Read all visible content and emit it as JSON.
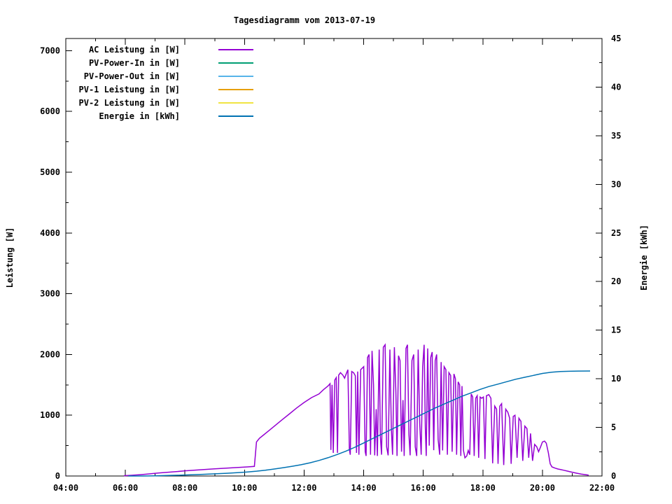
{
  "chart_data": {
    "type": "line",
    "title": "Tagesdiagramm vom 2013-07-19",
    "background": "#ffffff",
    "grid": false,
    "legend_position": "top-left-inside",
    "x_axis": {
      "min": 4,
      "max": 22,
      "major_ticks": [
        {
          "hour": 4,
          "label": "04:00"
        },
        {
          "hour": 6,
          "label": "06:00"
        },
        {
          "hour": 8,
          "label": "08:00"
        },
        {
          "hour": 10,
          "label": "10:00"
        },
        {
          "hour": 12,
          "label": "12:00"
        },
        {
          "hour": 14,
          "label": "14:00"
        },
        {
          "hour": 16,
          "label": "16:00"
        },
        {
          "hour": 18,
          "label": "18:00"
        },
        {
          "hour": 20,
          "label": "20:00"
        },
        {
          "hour": 22,
          "label": "22:00"
        }
      ],
      "minor_hours": [
        5,
        7,
        9,
        11,
        13,
        15,
        17,
        19,
        21
      ]
    },
    "y_left": {
      "label": "Leistung [W]",
      "min": 0,
      "max": 7200,
      "major_ticks": [
        {
          "value": 0,
          "label": "0"
        },
        {
          "value": 1000,
          "label": "1000"
        },
        {
          "value": 2000,
          "label": "2000"
        },
        {
          "value": 3000,
          "label": "3000"
        },
        {
          "value": 4000,
          "label": "4000"
        },
        {
          "value": 5000,
          "label": "5000"
        },
        {
          "value": 6000,
          "label": "6000"
        },
        {
          "value": 7000,
          "label": "7000"
        }
      ],
      "minor_values": [
        500,
        1500,
        2500,
        3500,
        4500,
        5500,
        6500
      ]
    },
    "y_right": {
      "label": "Energie [kWh]",
      "min": 0,
      "max": 45,
      "major_ticks": [
        {
          "value": 0,
          "label": "0"
        },
        {
          "value": 5,
          "label": "5"
        },
        {
          "value": 10,
          "label": "10"
        },
        {
          "value": 15,
          "label": "15"
        },
        {
          "value": 20,
          "label": "20"
        },
        {
          "value": 25,
          "label": "25"
        },
        {
          "value": 30,
          "label": "30"
        },
        {
          "value": 35,
          "label": "35"
        },
        {
          "value": 40,
          "label": "40"
        },
        {
          "value": 45,
          "label": "45"
        }
      ],
      "minor_values": [
        2.5,
        7.5,
        12.5,
        17.5,
        22.5,
        27.5,
        32.5,
        37.5,
        42.5
      ]
    },
    "legend": {
      "entries": [
        {
          "label": "AC Leistung in [W]",
          "color": "#9400d3"
        },
        {
          "label": "PV-Power-In in [W]",
          "color": "#009e73"
        },
        {
          "label": "PV-Power-Out in [W]",
          "color": "#56b4e9"
        },
        {
          "label": "PV-1 Leistung in [W]",
          "color": "#e69f00"
        },
        {
          "label": "PV-2 Leistung in [W]",
          "color": "#f0e442"
        },
        {
          "label": "Energie in [kWh]",
          "color": "#0072b2"
        }
      ]
    },
    "series": [
      {
        "name": "AC Leistung in [W]",
        "color": "#9400d3",
        "yaxis": "left",
        "points": [
          [
            5.95,
            5
          ],
          [
            6.2,
            12
          ],
          [
            6.5,
            22
          ],
          [
            6.8,
            35
          ],
          [
            7.1,
            48
          ],
          [
            7.4,
            60
          ],
          [
            7.7,
            72
          ],
          [
            8.0,
            85
          ],
          [
            8.3,
            95
          ],
          [
            8.6,
            105
          ],
          [
            9.0,
            118
          ],
          [
            9.4,
            130
          ],
          [
            9.8,
            142
          ],
          [
            10.1,
            150
          ],
          [
            10.33,
            158
          ],
          [
            10.4,
            560
          ],
          [
            10.5,
            620
          ],
          [
            10.65,
            680
          ],
          [
            10.8,
            740
          ],
          [
            11.0,
            820
          ],
          [
            11.25,
            920
          ],
          [
            11.5,
            1020
          ],
          [
            11.75,
            1120
          ],
          [
            12.0,
            1210
          ],
          [
            12.25,
            1290
          ],
          [
            12.5,
            1350
          ],
          [
            12.65,
            1420
          ],
          [
            12.8,
            1480
          ],
          [
            12.87,
            1520
          ],
          [
            12.9,
            430
          ],
          [
            12.94,
            1500
          ],
          [
            12.98,
            380
          ],
          [
            13.03,
            1580
          ],
          [
            13.08,
            1620
          ],
          [
            13.12,
            380
          ],
          [
            13.16,
            1660
          ],
          [
            13.22,
            1700
          ],
          [
            13.3,
            1660
          ],
          [
            13.36,
            1610
          ],
          [
            13.42,
            1690
          ],
          [
            13.47,
            1750
          ],
          [
            13.52,
            440
          ],
          [
            13.55,
            350
          ],
          [
            13.6,
            1720
          ],
          [
            13.66,
            1700
          ],
          [
            13.72,
            1650
          ],
          [
            13.76,
            380
          ],
          [
            13.8,
            1720
          ],
          [
            13.84,
            350
          ],
          [
            13.9,
            1750
          ],
          [
            13.96,
            1780
          ],
          [
            14.0,
            1800
          ],
          [
            14.05,
            400
          ],
          [
            14.08,
            330
          ],
          [
            14.13,
            1950
          ],
          [
            14.18,
            2000
          ],
          [
            14.23,
            350
          ],
          [
            14.28,
            2060
          ],
          [
            14.33,
            1500
          ],
          [
            14.37,
            340
          ],
          [
            14.42,
            1100
          ],
          [
            14.46,
            330
          ],
          [
            14.52,
            2080
          ],
          [
            14.56,
            640
          ],
          [
            14.6,
            350
          ],
          [
            14.66,
            2120
          ],
          [
            14.72,
            2160
          ],
          [
            14.77,
            480
          ],
          [
            14.82,
            340
          ],
          [
            14.88,
            2080
          ],
          [
            14.93,
            760
          ],
          [
            14.97,
            350
          ],
          [
            15.03,
            2120
          ],
          [
            15.08,
            1400
          ],
          [
            15.12,
            330
          ],
          [
            15.17,
            1980
          ],
          [
            15.22,
            1900
          ],
          [
            15.27,
            400
          ],
          [
            15.32,
            1250
          ],
          [
            15.36,
            330
          ],
          [
            15.42,
            2100
          ],
          [
            15.47,
            2160
          ],
          [
            15.52,
            680
          ],
          [
            15.56,
            340
          ],
          [
            15.62,
            1900
          ],
          [
            15.68,
            2000
          ],
          [
            15.73,
            480
          ],
          [
            15.78,
            330
          ],
          [
            15.83,
            2080
          ],
          [
            15.88,
            860
          ],
          [
            15.93,
            350
          ],
          [
            15.98,
            1800
          ],
          [
            16.03,
            2160
          ],
          [
            16.07,
            800
          ],
          [
            16.1,
            330
          ],
          [
            16.15,
            2100
          ],
          [
            16.2,
            500
          ],
          [
            16.25,
            1950
          ],
          [
            16.3,
            2040
          ],
          [
            16.35,
            425
          ],
          [
            16.4,
            1900
          ],
          [
            16.45,
            2000
          ],
          [
            16.5,
            600
          ],
          [
            16.55,
            350
          ],
          [
            16.6,
            1875
          ],
          [
            16.65,
            420
          ],
          [
            16.7,
            1800
          ],
          [
            16.76,
            1750
          ],
          [
            16.81,
            350
          ],
          [
            16.86,
            1700
          ],
          [
            16.92,
            1655
          ],
          [
            16.97,
            400
          ],
          [
            17.03,
            1680
          ],
          [
            17.08,
            1600
          ],
          [
            17.12,
            350
          ],
          [
            17.17,
            1550
          ],
          [
            17.22,
            1500
          ],
          [
            17.26,
            330
          ],
          [
            17.3,
            1480
          ],
          [
            17.35,
            420
          ],
          [
            17.4,
            300
          ],
          [
            17.46,
            330
          ],
          [
            17.51,
            420
          ],
          [
            17.56,
            350
          ],
          [
            17.61,
            1350
          ],
          [
            17.66,
            1300
          ],
          [
            17.71,
            330
          ],
          [
            17.76,
            1280
          ],
          [
            17.81,
            1320
          ],
          [
            17.86,
            300
          ],
          [
            17.91,
            1300
          ],
          [
            17.96,
            1280
          ],
          [
            18.02,
            1300
          ],
          [
            18.07,
            280
          ],
          [
            18.12,
            1320
          ],
          [
            18.2,
            1340
          ],
          [
            18.27,
            1280
          ],
          [
            18.33,
            210
          ],
          [
            18.4,
            1150
          ],
          [
            18.46,
            1100
          ],
          [
            18.51,
            200
          ],
          [
            18.57,
            1150
          ],
          [
            18.63,
            1190
          ],
          [
            18.7,
            180
          ],
          [
            18.77,
            1100
          ],
          [
            18.84,
            1050
          ],
          [
            18.9,
            950
          ],
          [
            18.95,
            200
          ],
          [
            19.02,
            980
          ],
          [
            19.08,
            1000
          ],
          [
            19.15,
            300
          ],
          [
            19.21,
            950
          ],
          [
            19.28,
            900
          ],
          [
            19.34,
            250
          ],
          [
            19.41,
            820
          ],
          [
            19.48,
            780
          ],
          [
            19.54,
            300
          ],
          [
            19.6,
            700
          ],
          [
            19.67,
            250
          ],
          [
            19.74,
            520
          ],
          [
            19.81,
            480
          ],
          [
            19.87,
            400
          ],
          [
            19.94,
            480
          ],
          [
            20.0,
            560
          ],
          [
            20.07,
            575
          ],
          [
            20.13,
            540
          ],
          [
            20.2,
            380
          ],
          [
            20.26,
            200
          ],
          [
            20.32,
            150
          ],
          [
            20.42,
            130
          ],
          [
            20.52,
            115
          ],
          [
            20.62,
            105
          ],
          [
            20.72,
            95
          ],
          [
            20.85,
            80
          ],
          [
            21.0,
            62
          ],
          [
            21.15,
            46
          ],
          [
            21.3,
            32
          ],
          [
            21.45,
            22
          ],
          [
            21.55,
            15
          ]
        ]
      },
      {
        "name": "Energie in [kWh]",
        "color": "#0072b2",
        "yaxis": "right",
        "points": [
          [
            6.1,
            0.0
          ],
          [
            6.6,
            0.0
          ],
          [
            7.0,
            0.02
          ],
          [
            7.4,
            0.05
          ],
          [
            7.8,
            0.08
          ],
          [
            8.2,
            0.12
          ],
          [
            8.6,
            0.17
          ],
          [
            9.0,
            0.22
          ],
          [
            9.4,
            0.28
          ],
          [
            9.8,
            0.35
          ],
          [
            10.1,
            0.42
          ],
          [
            10.4,
            0.5
          ],
          [
            10.7,
            0.6
          ],
          [
            11.0,
            0.72
          ],
          [
            11.3,
            0.86
          ],
          [
            11.6,
            1.0
          ],
          [
            11.9,
            1.16
          ],
          [
            12.2,
            1.36
          ],
          [
            12.5,
            1.6
          ],
          [
            12.8,
            1.88
          ],
          [
            13.1,
            2.2
          ],
          [
            13.4,
            2.55
          ],
          [
            13.7,
            2.95
          ],
          [
            14.0,
            3.4
          ],
          [
            14.3,
            3.85
          ],
          [
            14.6,
            4.3
          ],
          [
            14.9,
            4.75
          ],
          [
            15.2,
            5.2
          ],
          [
            15.5,
            5.65
          ],
          [
            15.8,
            6.1
          ],
          [
            16.1,
            6.55
          ],
          [
            16.4,
            7.0
          ],
          [
            16.7,
            7.4
          ],
          [
            17.0,
            7.8
          ],
          [
            17.3,
            8.2
          ],
          [
            17.6,
            8.55
          ],
          [
            17.9,
            8.9
          ],
          [
            18.2,
            9.2
          ],
          [
            18.5,
            9.45
          ],
          [
            18.8,
            9.7
          ],
          [
            19.1,
            9.95
          ],
          [
            19.4,
            10.15
          ],
          [
            19.7,
            10.35
          ],
          [
            20.0,
            10.55
          ],
          [
            20.3,
            10.68
          ],
          [
            20.6,
            10.74
          ],
          [
            20.9,
            10.77
          ],
          [
            21.2,
            10.79
          ],
          [
            21.6,
            10.8
          ]
        ]
      }
    ]
  }
}
